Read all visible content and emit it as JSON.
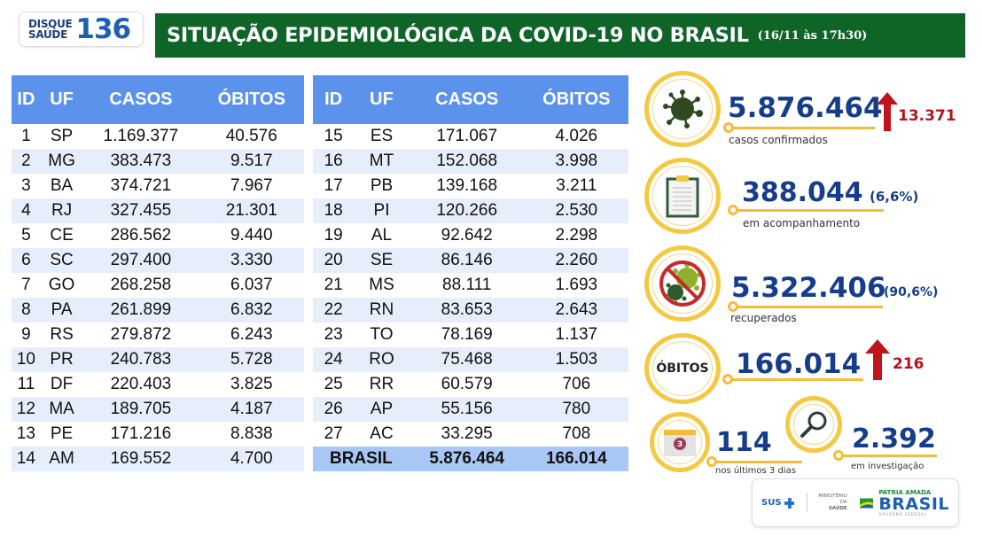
{
  "logo": {
    "line1": "DISQUE",
    "line2": "SAÚDE",
    "number": "136"
  },
  "banner": {
    "title": "SITUAÇÃO EPIDEMIOLÓGICA DA COVID-19 NO BRASIL",
    "date": "(16/11 às 17h30)"
  },
  "table": {
    "headers": [
      "ID",
      "UF",
      "CASOS",
      "ÓBITOS"
    ],
    "left": [
      [
        "1",
        "SP",
        "1.169.377",
        "40.576"
      ],
      [
        "2",
        "MG",
        "383.473",
        "9.517"
      ],
      [
        "3",
        "BA",
        "374.721",
        "7.967"
      ],
      [
        "4",
        "RJ",
        "327.455",
        "21.301"
      ],
      [
        "5",
        "CE",
        "286.562",
        "9.440"
      ],
      [
        "6",
        "SC",
        "297.400",
        "3.330"
      ],
      [
        "7",
        "GO",
        "268.258",
        "6.037"
      ],
      [
        "8",
        "PA",
        "261.899",
        "6.832"
      ],
      [
        "9",
        "RS",
        "279.872",
        "6.243"
      ],
      [
        "10",
        "PR",
        "240.783",
        "5.728"
      ],
      [
        "11",
        "DF",
        "220.403",
        "3.825"
      ],
      [
        "12",
        "MA",
        "189.705",
        "4.187"
      ],
      [
        "13",
        "PE",
        "171.216",
        "8.838"
      ],
      [
        "14",
        "AM",
        "169.552",
        "4.700"
      ]
    ],
    "right": [
      [
        "15",
        "ES",
        "171.067",
        "4.026"
      ],
      [
        "16",
        "MT",
        "152.068",
        "3.998"
      ],
      [
        "17",
        "PB",
        "139.168",
        "3.211"
      ],
      [
        "18",
        "PI",
        "120.266",
        "2.530"
      ],
      [
        "19",
        "AL",
        "92.642",
        "2.298"
      ],
      [
        "20",
        "SE",
        "86.146",
        "2.260"
      ],
      [
        "21",
        "MS",
        "88.111",
        "1.693"
      ],
      [
        "22",
        "RN",
        "83.653",
        "2.643"
      ],
      [
        "23",
        "TO",
        "78.169",
        "1.137"
      ],
      [
        "24",
        "RO",
        "75.468",
        "1.503"
      ],
      [
        "25",
        "RR",
        "60.579",
        "706"
      ],
      [
        "26",
        "AP",
        "55.156",
        "780"
      ],
      [
        "27",
        "AC",
        "33.295",
        "708"
      ]
    ],
    "total": {
      "label": "BRASIL",
      "casos": "5.876.464",
      "obitos": "166.014"
    }
  },
  "stats": {
    "confirmed": {
      "value": "5.876.464",
      "increase": "13.371",
      "label": "casos confirmados",
      "icon": "virus-icon"
    },
    "monitoring": {
      "value": "388.044",
      "pct": "(6,6%)",
      "label": "em acompanhamento",
      "icon": "clipboard-icon"
    },
    "recovered": {
      "value": "5.322.406",
      "pct": "(90,6%)",
      "label": "recuperados",
      "icon": "no-virus-icon"
    },
    "deaths": {
      "ring_label": "ÓBITOS",
      "value": "166.014",
      "increase": "216"
    },
    "last3days": {
      "value": "114",
      "label": "nos últimos 3 dias",
      "calendar_number": "3",
      "icon": "calendar-icon"
    },
    "investigation": {
      "value": "2.392",
      "label": "em investigação",
      "icon": "magnifier-icon"
    }
  },
  "footer": {
    "sus": "SUS",
    "ministry_line1": "MINISTÉRIO DA",
    "ministry_line2": "SAÚDE",
    "patria": "PÁTRIA AMADA",
    "brasil": "BRASIL",
    "gov": "GOVERNO FEDERAL"
  },
  "colors": {
    "banner_green": "#0f6428",
    "table_header_blue": "#5b93ec",
    "stripe": "#e6eefb",
    "total_row": "#a9c7f5",
    "number_blue": "#163d8a",
    "ring_yellow": "#f5c842",
    "increase_red": "#b5121b"
  }
}
